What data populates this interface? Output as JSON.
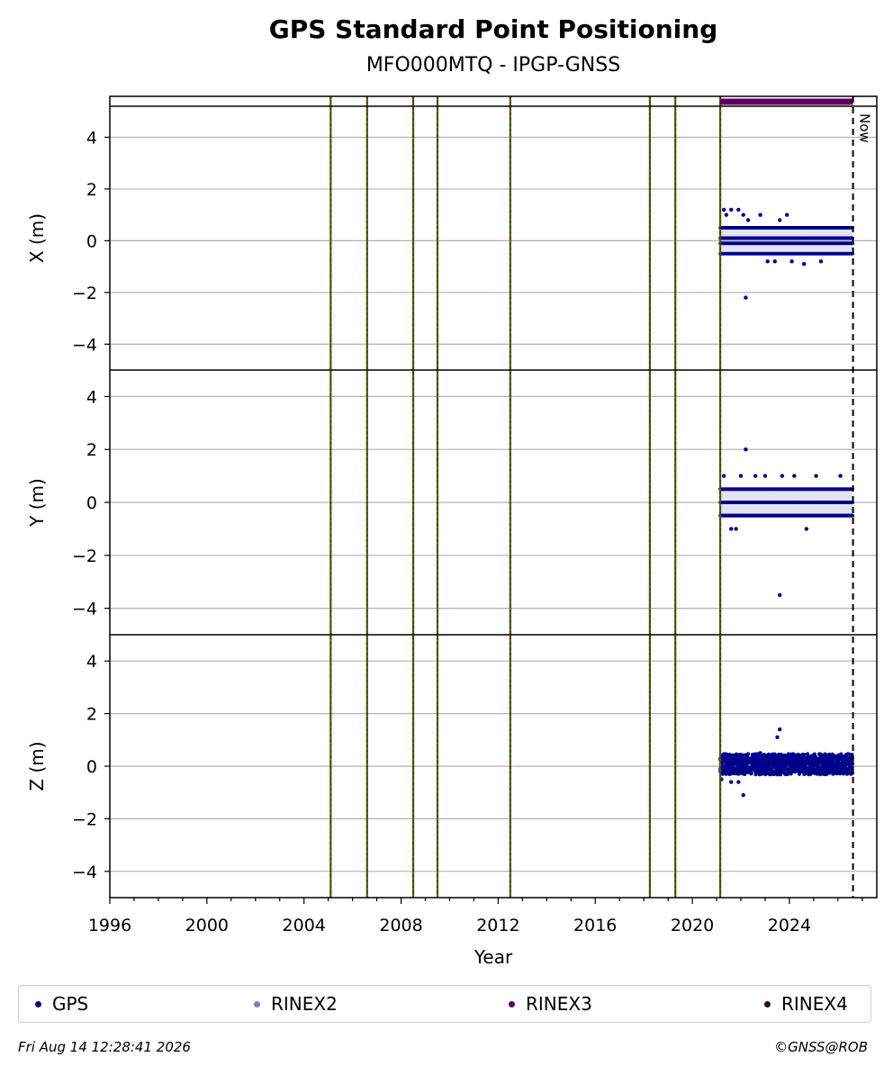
{
  "title": "GPS Standard Point Positioning",
  "subtitle": "MFO000MTQ - IPGP-GNSS",
  "xlabel": "Year",
  "now_label": "Now",
  "legend": [
    {
      "label": "GPS",
      "color": "#00008b"
    },
    {
      "label": "RINEX2",
      "color": "#7b7fc2"
    },
    {
      "label": "RINEX3",
      "color": "#5c0060"
    },
    {
      "label": "RINEX4",
      "color": "#2a0a2a"
    }
  ],
  "footer": {
    "timestamp": "Fri Aug 14 12:28:41 2026",
    "credit": "©GNSS@ROB"
  },
  "chart_data": {
    "type": "scatter",
    "xlim": [
      1996,
      2027.6
    ],
    "x_ticks": [
      1996,
      2000,
      2004,
      2008,
      2012,
      2016,
      2020,
      2024
    ],
    "y_ticks": [
      -4,
      -2,
      0,
      2,
      4
    ],
    "grid": true,
    "legend_placement": "bottom",
    "now": 2026.62,
    "event_lines": [
      2005.1,
      2006.6,
      2008.5,
      2009.5,
      2012.5,
      2018.25,
      2019.3,
      2021.15
    ],
    "event_line_colors": [
      "#c00000",
      "#008000"
    ],
    "rinex3_coverage": [
      2021.15,
      2026.62
    ],
    "panels": [
      {
        "ylabel": "X (m)",
        "ylim": [
          -5,
          5.2
        ],
        "series": [
          {
            "name": "GPS",
            "x_range": [
              2021.15,
              2026.62
            ],
            "levels": [
              -0.5,
              -0.1,
              0.1,
              0.5
            ],
            "outliers": [
              [
                2021.3,
                1.2
              ],
              [
                2021.6,
                1.2
              ],
              [
                2021.9,
                1.2
              ],
              [
                2022.1,
                1.0
              ],
              [
                2022.2,
                -2.2
              ],
              [
                2022.3,
                0.8
              ],
              [
                2022.8,
                1.0
              ],
              [
                2023.1,
                -0.8
              ],
              [
                2023.4,
                -0.8
              ],
              [
                2023.6,
                0.8
              ],
              [
                2024.1,
                -0.8
              ],
              [
                2024.6,
                -0.9
              ],
              [
                2025.3,
                -0.8
              ],
              [
                2021.4,
                1.0
              ],
              [
                2023.9,
                1.0
              ]
            ]
          }
        ]
      },
      {
        "ylabel": "Y (m)",
        "ylim": [
          -5,
          5
        ],
        "series": [
          {
            "name": "GPS",
            "x_range": [
              2021.15,
              2026.62
            ],
            "levels": [
              -0.5,
              0.0,
              0.5
            ],
            "outliers": [
              [
                2022.2,
                2.0
              ],
              [
                2021.3,
                1.0
              ],
              [
                2021.6,
                -1.0
              ],
              [
                2022.0,
                1.0
              ],
              [
                2022.6,
                1.0
              ],
              [
                2023.0,
                1.0
              ],
              [
                2023.6,
                -3.5
              ],
              [
                2023.7,
                1.0
              ],
              [
                2024.2,
                1.0
              ],
              [
                2024.7,
                -1.0
              ],
              [
                2025.1,
                1.0
              ],
              [
                2026.1,
                1.0
              ],
              [
                2021.8,
                -1.0
              ]
            ]
          }
        ]
      },
      {
        "ylabel": "Z (m)",
        "ylim": [
          -5,
          5
        ],
        "series": [
          {
            "name": "GPS",
            "x_range": [
              2021.15,
              2026.62
            ],
            "levels": [
              -0.2,
              0.0,
              0.2,
              0.35
            ],
            "outliers": [
              [
                2023.6,
                1.4
              ],
              [
                2023.5,
                1.1
              ],
              [
                2022.1,
                -1.1
              ],
              [
                2021.6,
                -0.6
              ],
              [
                2021.9,
                -0.6
              ],
              [
                2022.8,
                0.5
              ],
              [
                2021.2,
                -0.5
              ]
            ]
          }
        ]
      }
    ]
  }
}
